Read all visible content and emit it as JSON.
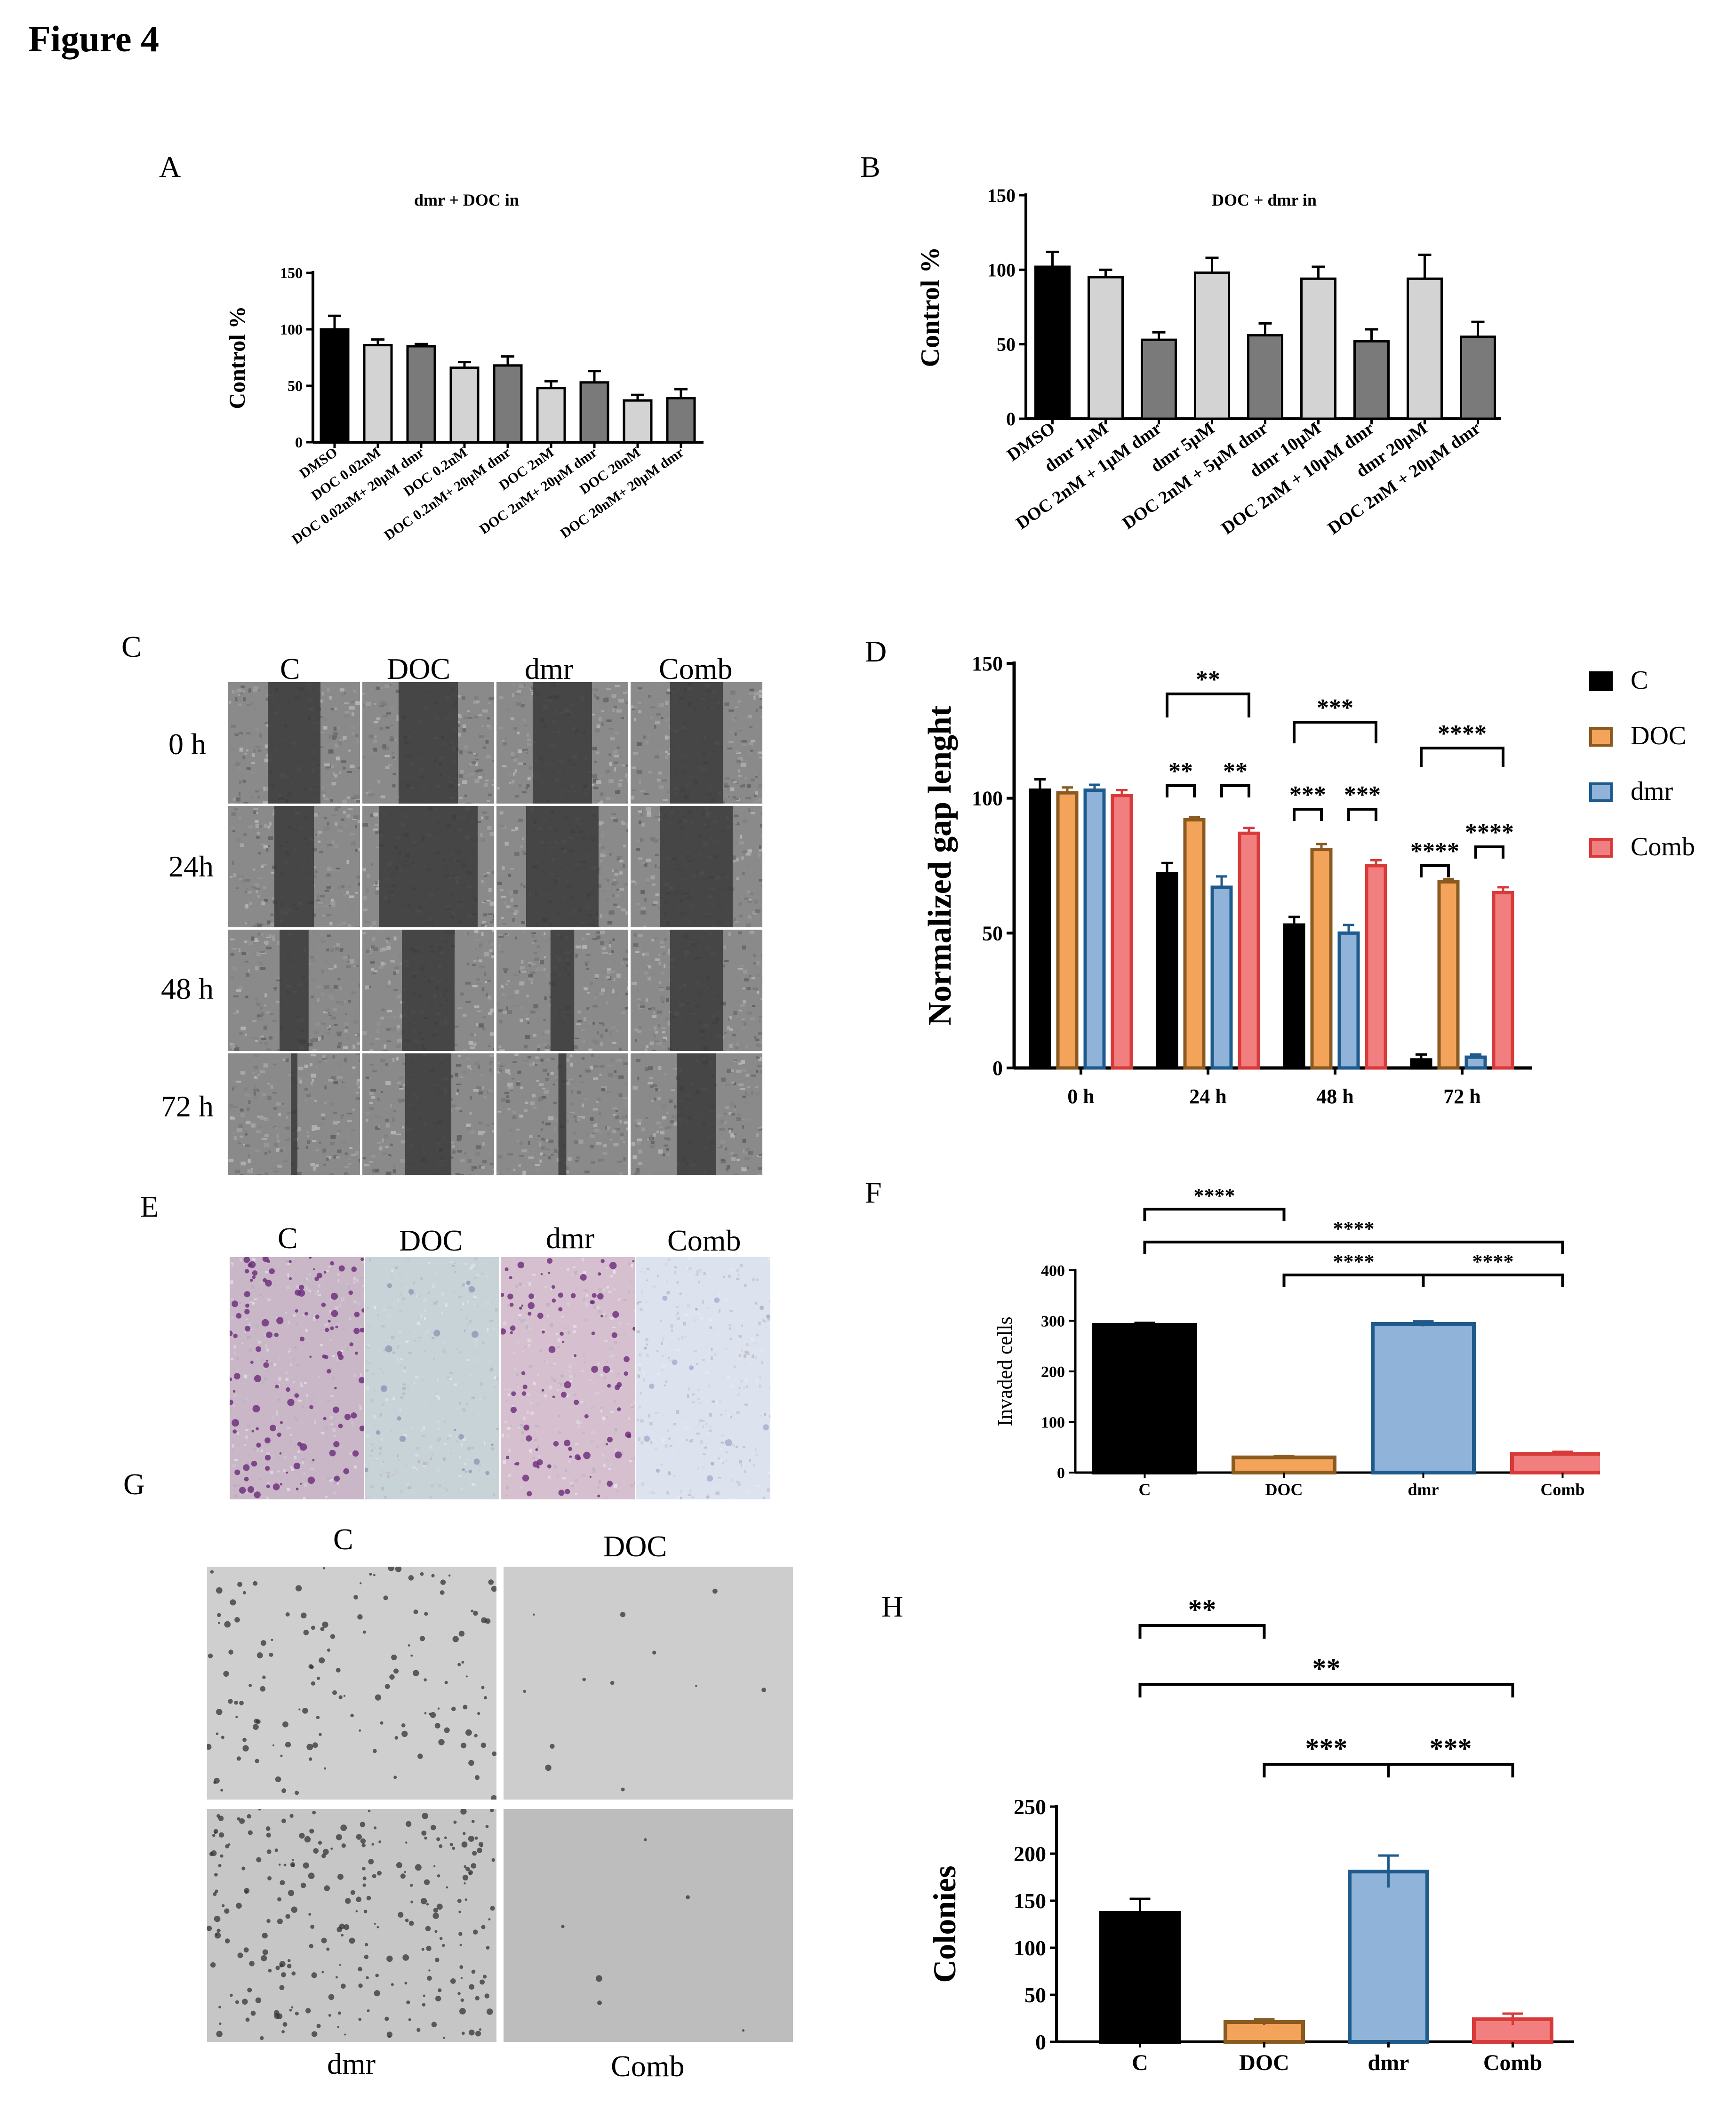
{
  "figure_title": "Figure 4",
  "colors": {
    "black": "#000000",
    "light_gray": "#d3d3d3",
    "dark_gray": "#7a7a7a",
    "orange": "#f3a35a",
    "blue": "#8fb3d9",
    "blue_dark": "#1f5a8c",
    "red": "#f27f7f",
    "red_dark": "#d83a3a"
  },
  "panels": {
    "A": {
      "letter": "A"
    },
    "B": {
      "letter": "B"
    },
    "C": {
      "letter": "C",
      "col_labels": [
        "C",
        "DOC",
        "dmr",
        "Comb"
      ],
      "row_labels": [
        "0 h",
        "24h",
        "48 h",
        "72 h"
      ]
    },
    "D": {
      "letter": "D"
    },
    "E": {
      "letter": "E",
      "col_labels": [
        "C",
        "DOC",
        "dmr",
        "Comb"
      ]
    },
    "F": {
      "letter": "F"
    },
    "G": {
      "letter": "G",
      "labels": [
        "C",
        "DOC",
        "dmr",
        "Comb"
      ]
    },
    "H": {
      "letter": "H"
    }
  },
  "chart_data": [
    {
      "id": "A",
      "type": "bar",
      "title": "dmr + DOC in",
      "ylabel": "Control %",
      "ylim": [
        0,
        150
      ],
      "yticks": [
        0,
        50,
        100,
        150
      ],
      "categories": [
        "DMSO",
        "DOC 0.02nM",
        "DOC 0.02nM+ 20µM dmr",
        "DOC 0.2nM",
        "DOC 0.2nM+ 20µM dmr",
        "DOC 2nM",
        "DOC 2nM+ 20µM dmr",
        "DOC 20nM",
        "DOC 20nM+ 20µM dmr"
      ],
      "values": [
        100,
        86,
        85,
        66,
        68,
        48,
        53,
        37,
        39
      ],
      "errors": [
        12,
        5,
        2,
        5,
        8,
        6,
        10,
        5,
        8
      ],
      "bar_colors": [
        "#000000",
        "#d3d3d3",
        "#7a7a7a",
        "#d3d3d3",
        "#7a7a7a",
        "#d3d3d3",
        "#7a7a7a",
        "#d3d3d3",
        "#7a7a7a"
      ]
    },
    {
      "id": "B",
      "type": "bar",
      "title": "DOC + dmr in",
      "ylabel": "Control %",
      "ylim": [
        0,
        150
      ],
      "yticks": [
        0,
        50,
        100,
        150
      ],
      "categories": [
        "DMSO",
        "dmr 1µM",
        "DOC 2nM + 1µM dmr",
        "dmr 5µM",
        "DOC 2nM + 5µM dmr",
        "dmr 10µM",
        "DOC 2nM + 10µM dmr",
        "dmr 20µM",
        "DOC 2nM + 20µM dmr"
      ],
      "values": [
        102,
        95,
        53,
        98,
        56,
        94,
        52,
        94,
        55
      ],
      "errors": [
        10,
        5,
        5,
        10,
        8,
        8,
        8,
        16,
        10
      ],
      "bar_colors": [
        "#000000",
        "#d3d3d3",
        "#7a7a7a",
        "#d3d3d3",
        "#7a7a7a",
        "#d3d3d3",
        "#7a7a7a",
        "#d3d3d3",
        "#7a7a7a"
      ]
    },
    {
      "id": "D",
      "type": "bar",
      "ylabel": "Normalized gap lenght",
      "ylim": [
        0,
        150
      ],
      "yticks": [
        0,
        50,
        100,
        150
      ],
      "categories": [
        "0 h",
        "24 h",
        "48 h",
        "72 h"
      ],
      "series": [
        {
          "name": "C",
          "values": [
            103,
            72,
            53,
            3
          ],
          "errors": [
            4,
            4,
            3,
            2
          ],
          "fill": "#000000",
          "stroke": "#000000"
        },
        {
          "name": "DOC",
          "values": [
            102,
            92,
            81,
            69
          ],
          "errors": [
            2,
            1,
            2,
            1
          ],
          "fill": "#f3a35a",
          "stroke": "#8a5a20"
        },
        {
          "name": "dmr",
          "values": [
            103,
            67,
            50,
            4
          ],
          "errors": [
            2,
            4,
            3,
            1
          ],
          "fill": "#8fb3d9",
          "stroke": "#1f5a8c"
        },
        {
          "name": "Comb",
          "values": [
            101,
            87,
            75,
            65
          ],
          "errors": [
            2,
            2,
            2,
            2
          ],
          "fill": "#f27f7f",
          "stroke": "#d83a3a"
        }
      ],
      "annotations": [
        "**",
        "**",
        "**",
        "***",
        "***",
        "***",
        "****",
        "****",
        "****"
      ]
    },
    {
      "id": "F",
      "type": "bar",
      "ylabel": "Invaded cells",
      "ylim": [
        0,
        400
      ],
      "yticks": [
        0,
        100,
        200,
        300,
        400
      ],
      "categories": [
        "C",
        "DOC",
        "dmr",
        "Comb"
      ],
      "values": [
        292,
        30,
        294,
        37
      ],
      "errors": [
        4,
        3,
        5,
        4
      ],
      "fills": [
        "#000000",
        "#f3a35a",
        "#8fb3d9",
        "#f27f7f"
      ],
      "strokes": [
        "#000000",
        "#8a5a20",
        "#1f5a8c",
        "#d83a3a"
      ],
      "annotations": [
        "****",
        "****",
        "****",
        "****"
      ]
    },
    {
      "id": "H",
      "type": "bar",
      "ylabel": "Colonies",
      "ylim": [
        0,
        250
      ],
      "yticks": [
        0,
        50,
        100,
        150,
        200,
        250
      ],
      "categories": [
        "C",
        "DOC",
        "dmr",
        "Comb"
      ],
      "values": [
        137,
        21,
        181,
        24
      ],
      "errors": [
        15,
        3,
        17,
        6
      ],
      "fills": [
        "#000000",
        "#f3a35a",
        "#8fb3d9",
        "#f27f7f"
      ],
      "strokes": [
        "#000000",
        "#8a5a20",
        "#1f5a8c",
        "#d83a3a"
      ],
      "annotations": [
        "**",
        "**",
        "***",
        "***"
      ]
    }
  ]
}
